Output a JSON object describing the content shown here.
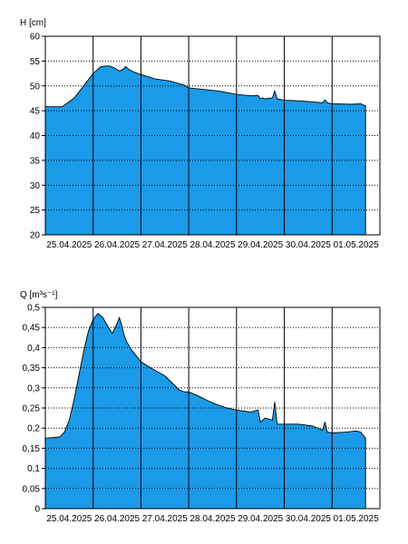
{
  "chart_data": [
    {
      "type": "area",
      "ylabel": "H [cm]",
      "ylim": [
        20,
        60
      ],
      "yticks": [
        20,
        25,
        30,
        35,
        40,
        45,
        50,
        55,
        60
      ],
      "yticklabels": [
        "20",
        "25",
        "30",
        "35",
        "40",
        "45",
        "50",
        "55",
        "60"
      ],
      "xlim": [
        0,
        7
      ],
      "xticks": [
        0,
        1,
        2,
        3,
        4,
        5,
        6
      ],
      "xticklabels": [
        "25.04.2025",
        "26.04.2025",
        "27.04.2025",
        "28.04.2025",
        "29.04.2025",
        "30.04.2025",
        "01.05.2025"
      ],
      "grid": true,
      "fill_color": "#1a9ae8",
      "line_color": "#000000",
      "series": [
        {
          "x": [
            0,
            0.35,
            0.6,
            0.8,
            1.0,
            1.15,
            1.25,
            1.35,
            1.45,
            1.55,
            1.62,
            1.68,
            1.75,
            1.85,
            2.0,
            2.3,
            2.6,
            2.9,
            3.0,
            3.3,
            3.6,
            4.0,
            4.3,
            4.45,
            4.5,
            4.55,
            4.6,
            4.75,
            4.8,
            4.85,
            5.0,
            5.3,
            5.6,
            5.8,
            5.85,
            5.9,
            6.0,
            6.4,
            6.6,
            6.7
          ],
          "y": [
            45.8,
            45.8,
            47.5,
            50,
            52.5,
            53.8,
            54.0,
            54.0,
            53.6,
            53.0,
            53.3,
            53.9,
            53.3,
            52.8,
            52.3,
            51.4,
            51.0,
            50.2,
            49.6,
            49.3,
            49.0,
            48.3,
            48.0,
            48.1,
            47.4,
            47.6,
            47.4,
            47.6,
            49.0,
            47.4,
            47.1,
            47.0,
            46.8,
            46.6,
            47.2,
            46.6,
            46.4,
            46.3,
            46.4,
            46.0
          ]
        }
      ]
    },
    {
      "type": "area",
      "ylabel": "Q [m³s⁻¹]",
      "ylim": [
        0,
        0.5
      ],
      "yticks": [
        0,
        0.05,
        0.1,
        0.15,
        0.2,
        0.25,
        0.3,
        0.35,
        0.4,
        0.45,
        0.5
      ],
      "yticklabels": [
        "0",
        "0,05",
        "0,1",
        "0,15",
        "0,2",
        "0,25",
        "0,3",
        "0,35",
        "0,4",
        "0,45",
        "0,5"
      ],
      "xlim": [
        0,
        7
      ],
      "xticks": [
        0,
        1,
        2,
        3,
        4,
        5,
        6
      ],
      "xticklabels": [
        "25.04.2025",
        "26.04.2025",
        "27.04.2025",
        "28.04.2025",
        "29.04.2025",
        "30.04.2025",
        "01.05.2025"
      ],
      "grid": true,
      "fill_color": "#1a9ae8",
      "line_color": "#000000",
      "series": [
        {
          "x": [
            0,
            0.3,
            0.4,
            0.5,
            0.6,
            0.7,
            0.8,
            0.9,
            1.0,
            1.1,
            1.2,
            1.3,
            1.4,
            1.5,
            1.55,
            1.6,
            1.65,
            1.7,
            1.8,
            1.9,
            2.0,
            2.2,
            2.5,
            2.8,
            2.9,
            3.0,
            3.2,
            3.4,
            3.6,
            3.8,
            4.0,
            4.3,
            4.45,
            4.5,
            4.6,
            4.75,
            4.8,
            4.85,
            4.9,
            5.0,
            5.3,
            5.6,
            5.8,
            5.85,
            5.9,
            6.0,
            6.3,
            6.5,
            6.6,
            6.7
          ],
          "y": [
            0.175,
            0.178,
            0.19,
            0.22,
            0.27,
            0.33,
            0.39,
            0.44,
            0.47,
            0.485,
            0.475,
            0.455,
            0.435,
            0.46,
            0.475,
            0.455,
            0.43,
            0.415,
            0.395,
            0.38,
            0.365,
            0.35,
            0.33,
            0.295,
            0.29,
            0.29,
            0.28,
            0.268,
            0.258,
            0.25,
            0.245,
            0.24,
            0.245,
            0.215,
            0.225,
            0.22,
            0.265,
            0.21,
            0.21,
            0.21,
            0.21,
            0.205,
            0.195,
            0.215,
            0.19,
            0.188,
            0.19,
            0.193,
            0.19,
            0.175
          ]
        }
      ]
    }
  ]
}
